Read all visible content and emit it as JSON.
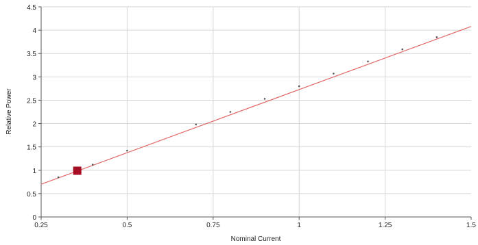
{
  "chart_data": {
    "type": "scatter",
    "xlabel": "Nominal Current",
    "ylabel": "Relative Power",
    "xlim": [
      0.25,
      1.5
    ],
    "ylim": [
      0,
      4.5
    ],
    "x_ticks": [
      "0.25",
      "0.5",
      "0.75",
      "1",
      "1.25",
      "1.5"
    ],
    "y_ticks": [
      "0",
      "0.5",
      "1",
      "1.5",
      "2",
      "2.5",
      "3",
      "3.5",
      "4",
      "4.5"
    ],
    "grid": true,
    "series": [
      {
        "marker": "dot",
        "color": "#555555",
        "points": [
          {
            "x": 0.3,
            "y": 0.85
          },
          {
            "x": 0.4,
            "y": 1.12
          },
          {
            "x": 0.5,
            "y": 1.42
          },
          {
            "x": 0.7,
            "y": 1.98
          },
          {
            "x": 0.8,
            "y": 2.25
          },
          {
            "x": 0.9,
            "y": 2.53
          },
          {
            "x": 1.0,
            "y": 2.8
          },
          {
            "x": 1.1,
            "y": 3.07
          },
          {
            "x": 1.2,
            "y": 3.33
          },
          {
            "x": 1.3,
            "y": 3.59
          },
          {
            "x": 1.4,
            "y": 3.85
          }
        ]
      }
    ],
    "fit_line": {
      "color": "#e06666",
      "from": {
        "x": 0.25,
        "y": 0.7
      },
      "to": {
        "x": 1.5,
        "y": 4.08
      }
    },
    "highlight_point": {
      "x": 0.355,
      "y": 0.99,
      "color": "#a50f24",
      "marker": "square"
    }
  }
}
